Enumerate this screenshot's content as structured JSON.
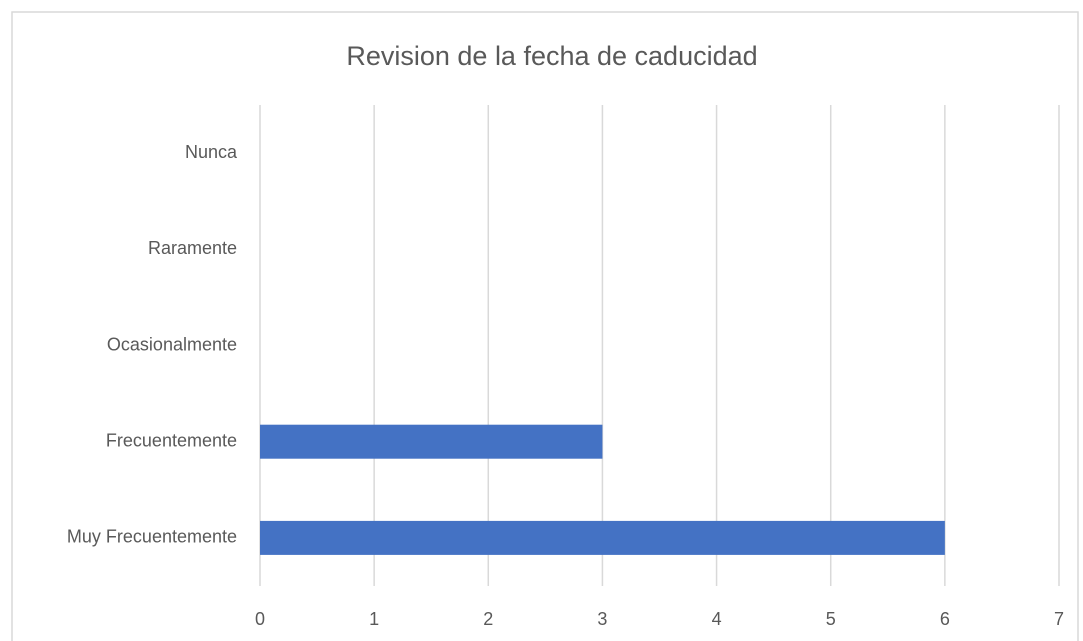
{
  "chart_data": {
    "type": "bar",
    "orientation": "horizontal",
    "title": "Revision de la fecha de caducidad",
    "categories": [
      "Nunca",
      "Raramente",
      "Ocasionalmente",
      "Frecuentemente",
      "Muy Frecuentemente"
    ],
    "values": [
      0,
      0,
      0,
      3,
      6
    ],
    "color": "#4472c4",
    "xlim": [
      0,
      7
    ],
    "xticks": [
      0,
      1,
      2,
      3,
      4,
      5,
      6,
      7
    ],
    "grid": true
  }
}
